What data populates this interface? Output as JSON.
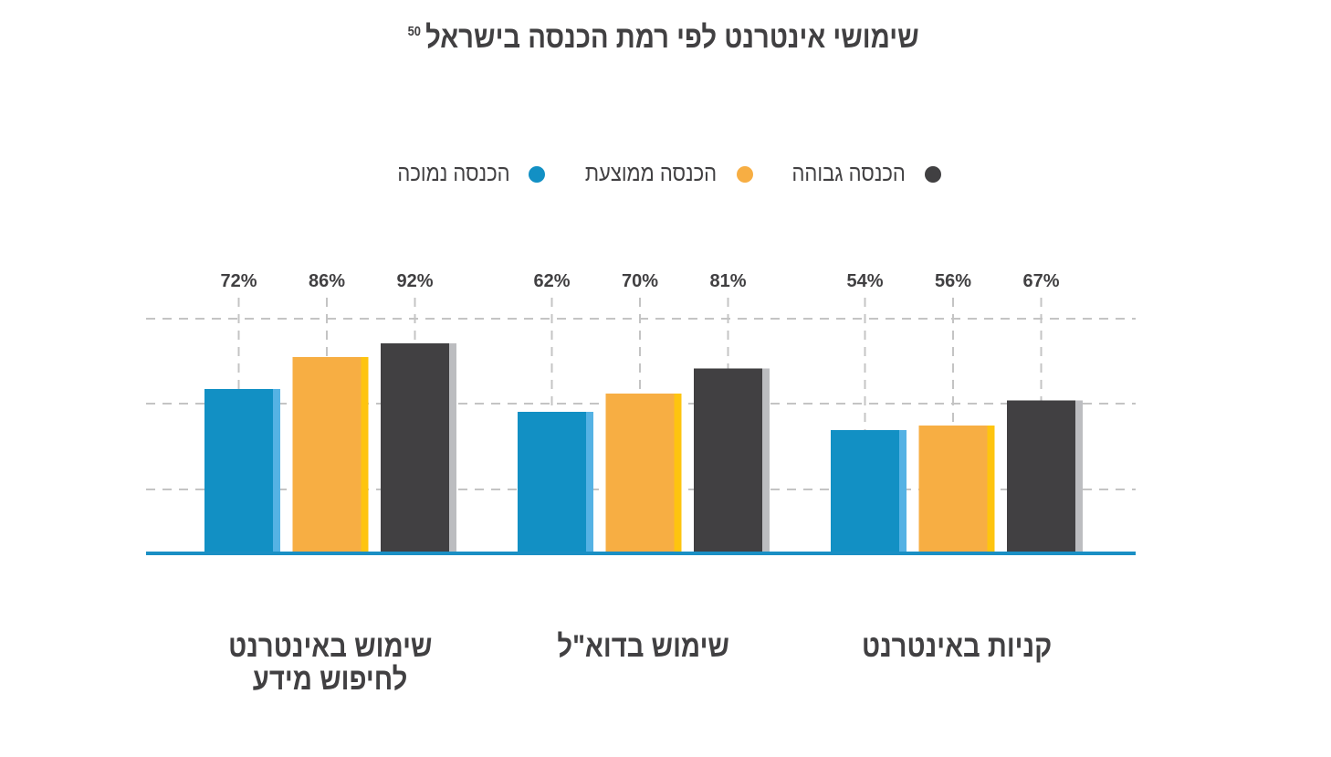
{
  "title": "שימושי אינטרנט לפי רמת הכנסה בישראל",
  "title_footnote": "50",
  "legend": [
    {
      "label": "הכנסה גבוהה",
      "color": "#414042"
    },
    {
      "label": "הכנסה ממוצעת",
      "color": "#f7ae43"
    },
    {
      "label": "הכנסה נמוכה",
      "color": "#1290c4"
    }
  ],
  "chart_data": {
    "type": "bar",
    "title": "שימושי אינטרנט לפי רמת הכנסה בישראל",
    "xlabel": "",
    "ylabel": "",
    "ylim": [
      0,
      100
    ],
    "grid": true,
    "legend_position": "top",
    "categories": [
      "שימוש באינטרנט לחיפוש מידע",
      "שימוש בדוא\"ל",
      "קניות באינטרנט"
    ],
    "category_lines": [
      [
        "שימוש באינטרנט",
        "לחיפוש מידע"
      ],
      [
        "שימוש בדוא\"ל"
      ],
      [
        "קניות באינטרנט"
      ]
    ],
    "series": [
      {
        "name": "הכנסה נמוכה",
        "color": "#1290c4",
        "side_color": "#55b2e4",
        "values": [
          72,
          62,
          54
        ],
        "labels": [
          "72%",
          "62%",
          "54%"
        ]
      },
      {
        "name": "הכנסה ממוצעת",
        "color": "#f7ae43",
        "side_color": "#fec40f",
        "values": [
          86,
          70,
          56
        ],
        "labels": [
          "86%",
          "70%",
          "56%"
        ]
      },
      {
        "name": "הכנסה גבוהה",
        "color": "#414042",
        "side_color": "#bcbdc0",
        "values": [
          92,
          81,
          67
        ],
        "labels": [
          "92%",
          "81%",
          "67%"
        ]
      }
    ],
    "baseline_color": "#1a8fc4",
    "grid_color": "#c4c4c4"
  }
}
